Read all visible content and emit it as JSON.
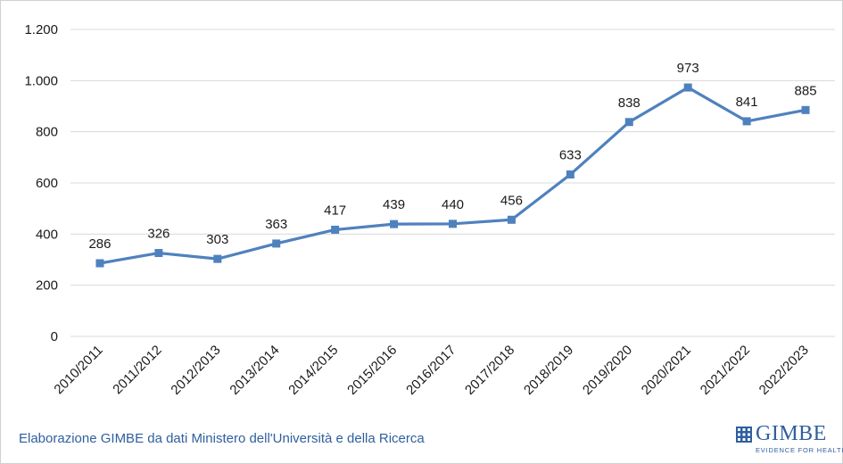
{
  "chart_data": {
    "type": "line",
    "title": "",
    "xlabel": "",
    "ylabel": "",
    "categories": [
      "2010/2011",
      "2011/2012",
      "2012/2013",
      "2013/2014",
      "2014/2015",
      "2015/2016",
      "2016/2017",
      "2017/2018",
      "2018/2019",
      "2019/2020",
      "2020/2021",
      "2021/2022",
      "2022/2023"
    ],
    "series": [
      {
        "values": [
          286,
          326,
          303,
          363,
          417,
          439,
          440,
          456,
          633,
          838,
          973,
          841,
          885
        ],
        "data_labels": [
          "286",
          "326",
          "303",
          "363",
          "417",
          "439",
          "440",
          "456",
          "633",
          "838",
          "973",
          "841",
          "885"
        ],
        "color": "#4f81bd"
      }
    ],
    "ylim": [
      0,
      1200
    ],
    "yticks": [
      0,
      200,
      400,
      600,
      800,
      1000,
      1200
    ],
    "ytick_labels": [
      "0",
      "200",
      "400",
      "600",
      "800",
      "1.000",
      "1.200"
    ],
    "grid": "horizontal",
    "legend": "none"
  },
  "source_note": "Elaborazione GIMBE da dati Ministero dell'Università e della Ricerca",
  "logo": {
    "name": "GIMBE",
    "tagline": "EVIDENCE FOR HEALTH",
    "color": "#2f5f9e"
  }
}
